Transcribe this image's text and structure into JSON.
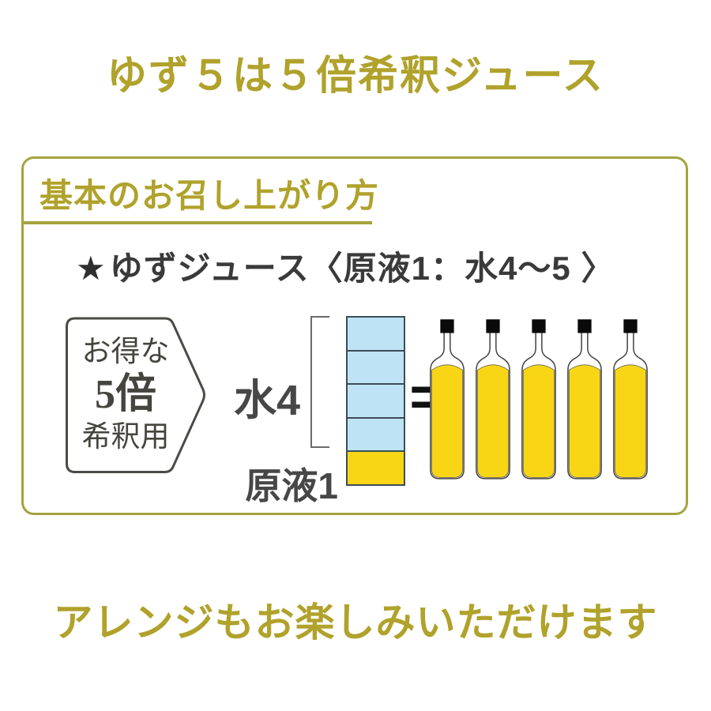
{
  "title": "ゆず５は５倍希釈ジュース",
  "panel": {
    "header": "基本のお召し上がり方",
    "recipe": {
      "star": "★",
      "text": "ゆずジュース〈原液1：水4～5 〉"
    },
    "badge": {
      "line1": "お得な",
      "line2": "5倍",
      "line3": "希釈用"
    },
    "diagram": {
      "water_label": "水4",
      "concentrate_label": "原液1",
      "equals_sign": "=",
      "water_parts": 4,
      "concentrate_parts": 1,
      "bottle_count": 5
    }
  },
  "footer": "アレンジもお楽しみいただけます",
  "colors": {
    "accent_gold": "#b0a22b",
    "border_olive": "#a5a33e",
    "juice_yellow": "#f8d616",
    "water_blue": "#bee3f5",
    "cell_border": "#3b4d57",
    "cap_black": "#0a0a0a",
    "text_dark": "#3a3a3a"
  }
}
